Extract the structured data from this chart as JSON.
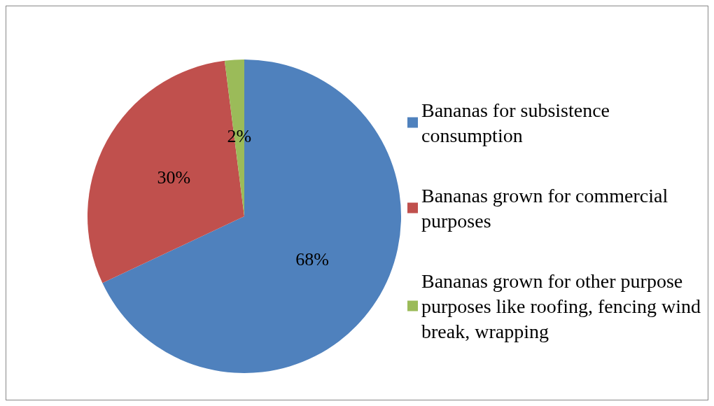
{
  "chart_data": {
    "type": "pie",
    "categories": [
      "Bananas for subsistence consumption",
      "Bananas grown for commercial purposes",
      "Bananas grown for other purpose purposes like roofing, fencing wind break, wrapping"
    ],
    "values": [
      68,
      30,
      2
    ],
    "colors": [
      "#4f81bd",
      "#c0504d",
      "#9bbb59"
    ],
    "value_labels": [
      "68%",
      "30%",
      "2%"
    ],
    "legend": "right"
  }
}
